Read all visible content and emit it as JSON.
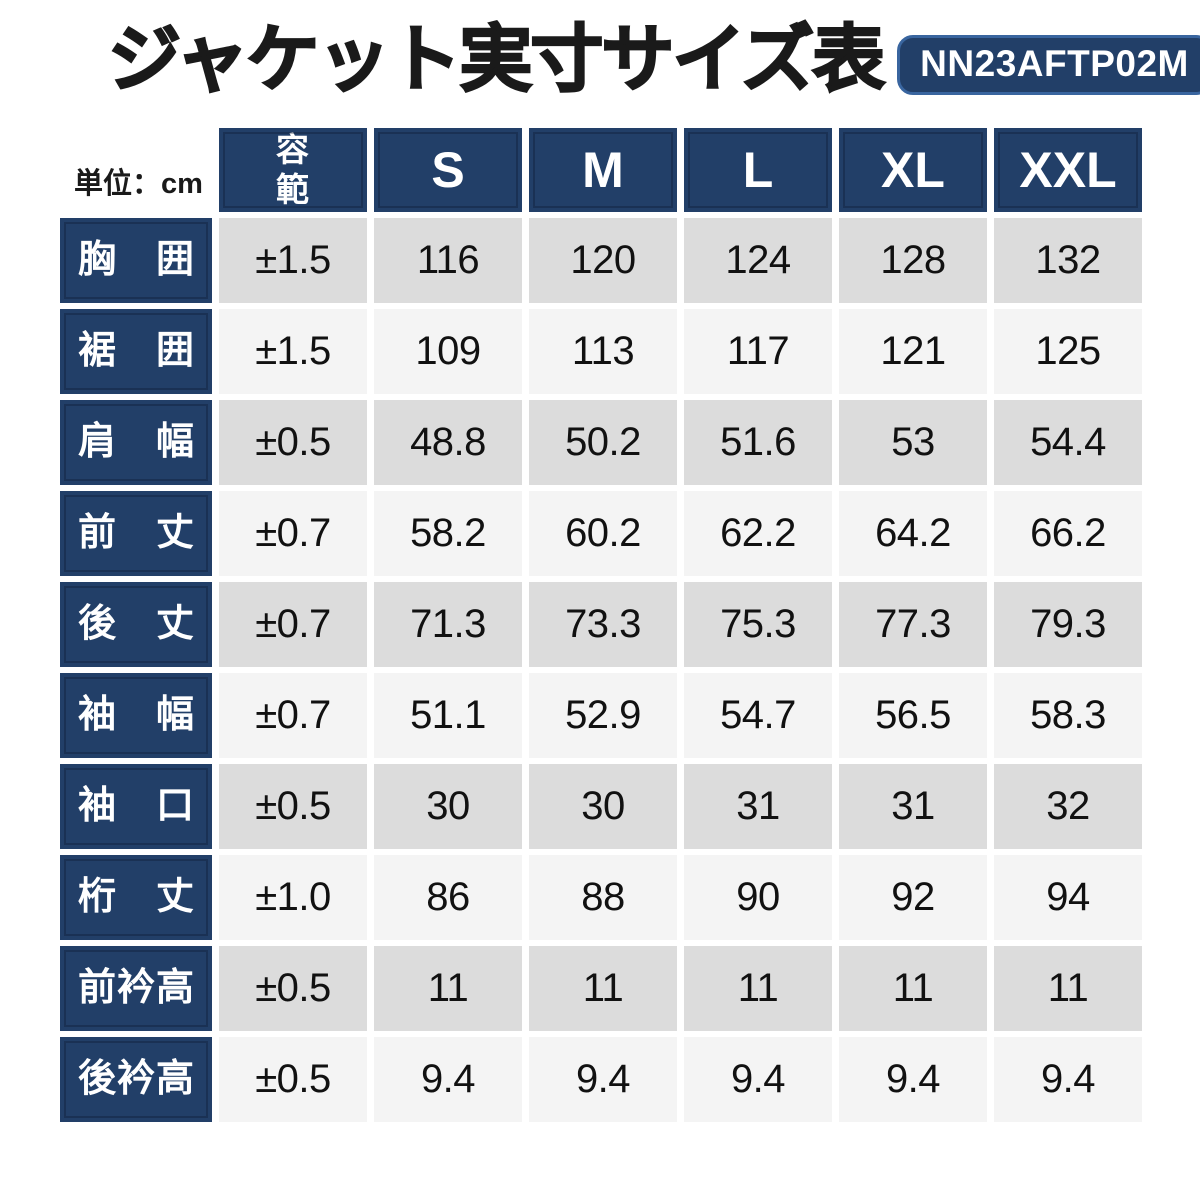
{
  "title": "ジャケット実寸サイズ表",
  "product_code": "NN23AFTP02M",
  "unit_label": "単位：cm",
  "table": {
    "tolerance_header": "許容範囲",
    "size_headers": [
      "S",
      "M",
      "L",
      "XL",
      "XXL"
    ],
    "rows": [
      {
        "label": "胸囲",
        "tolerance": "±1.5",
        "values": [
          "116",
          "120",
          "124",
          "128",
          "132"
        ]
      },
      {
        "label": "裾囲",
        "tolerance": "±1.5",
        "values": [
          "109",
          "113",
          "117",
          "121",
          "125"
        ]
      },
      {
        "label": "肩幅",
        "tolerance": "±0.5",
        "values": [
          "48.8",
          "50.2",
          "51.6",
          "53",
          "54.4"
        ]
      },
      {
        "label": "前丈",
        "tolerance": "±0.7",
        "values": [
          "58.2",
          "60.2",
          "62.2",
          "64.2",
          "66.2"
        ]
      },
      {
        "label": "後丈",
        "tolerance": "±0.7",
        "values": [
          "71.3",
          "73.3",
          "75.3",
          "77.3",
          "79.3"
        ]
      },
      {
        "label": "袖幅",
        "tolerance": "±0.7",
        "values": [
          "51.1",
          "52.9",
          "54.7",
          "56.5",
          "58.3"
        ]
      },
      {
        "label": "袖口",
        "tolerance": "±0.5",
        "values": [
          "30",
          "30",
          "31",
          "31",
          "32"
        ]
      },
      {
        "label": "桁丈",
        "tolerance": "±1.0",
        "values": [
          "86",
          "88",
          "90",
          "92",
          "94"
        ]
      },
      {
        "label": "前衿高",
        "tolerance": "±0.5",
        "values": [
          "11",
          "11",
          "11",
          "11",
          "11"
        ]
      },
      {
        "label": "後衿高",
        "tolerance": "±0.5",
        "values": [
          "9.4",
          "9.4",
          "9.4",
          "9.4",
          "9.4"
        ]
      }
    ]
  },
  "colors": {
    "navy": "#223F68",
    "badge_border": "#39659F",
    "row_shade_dark": "#DCDCDC",
    "row_shade_light": "#F4F4F4",
    "text": "#111111",
    "title_text": "#1A1A1A",
    "header_text": "#FFFFFF"
  }
}
